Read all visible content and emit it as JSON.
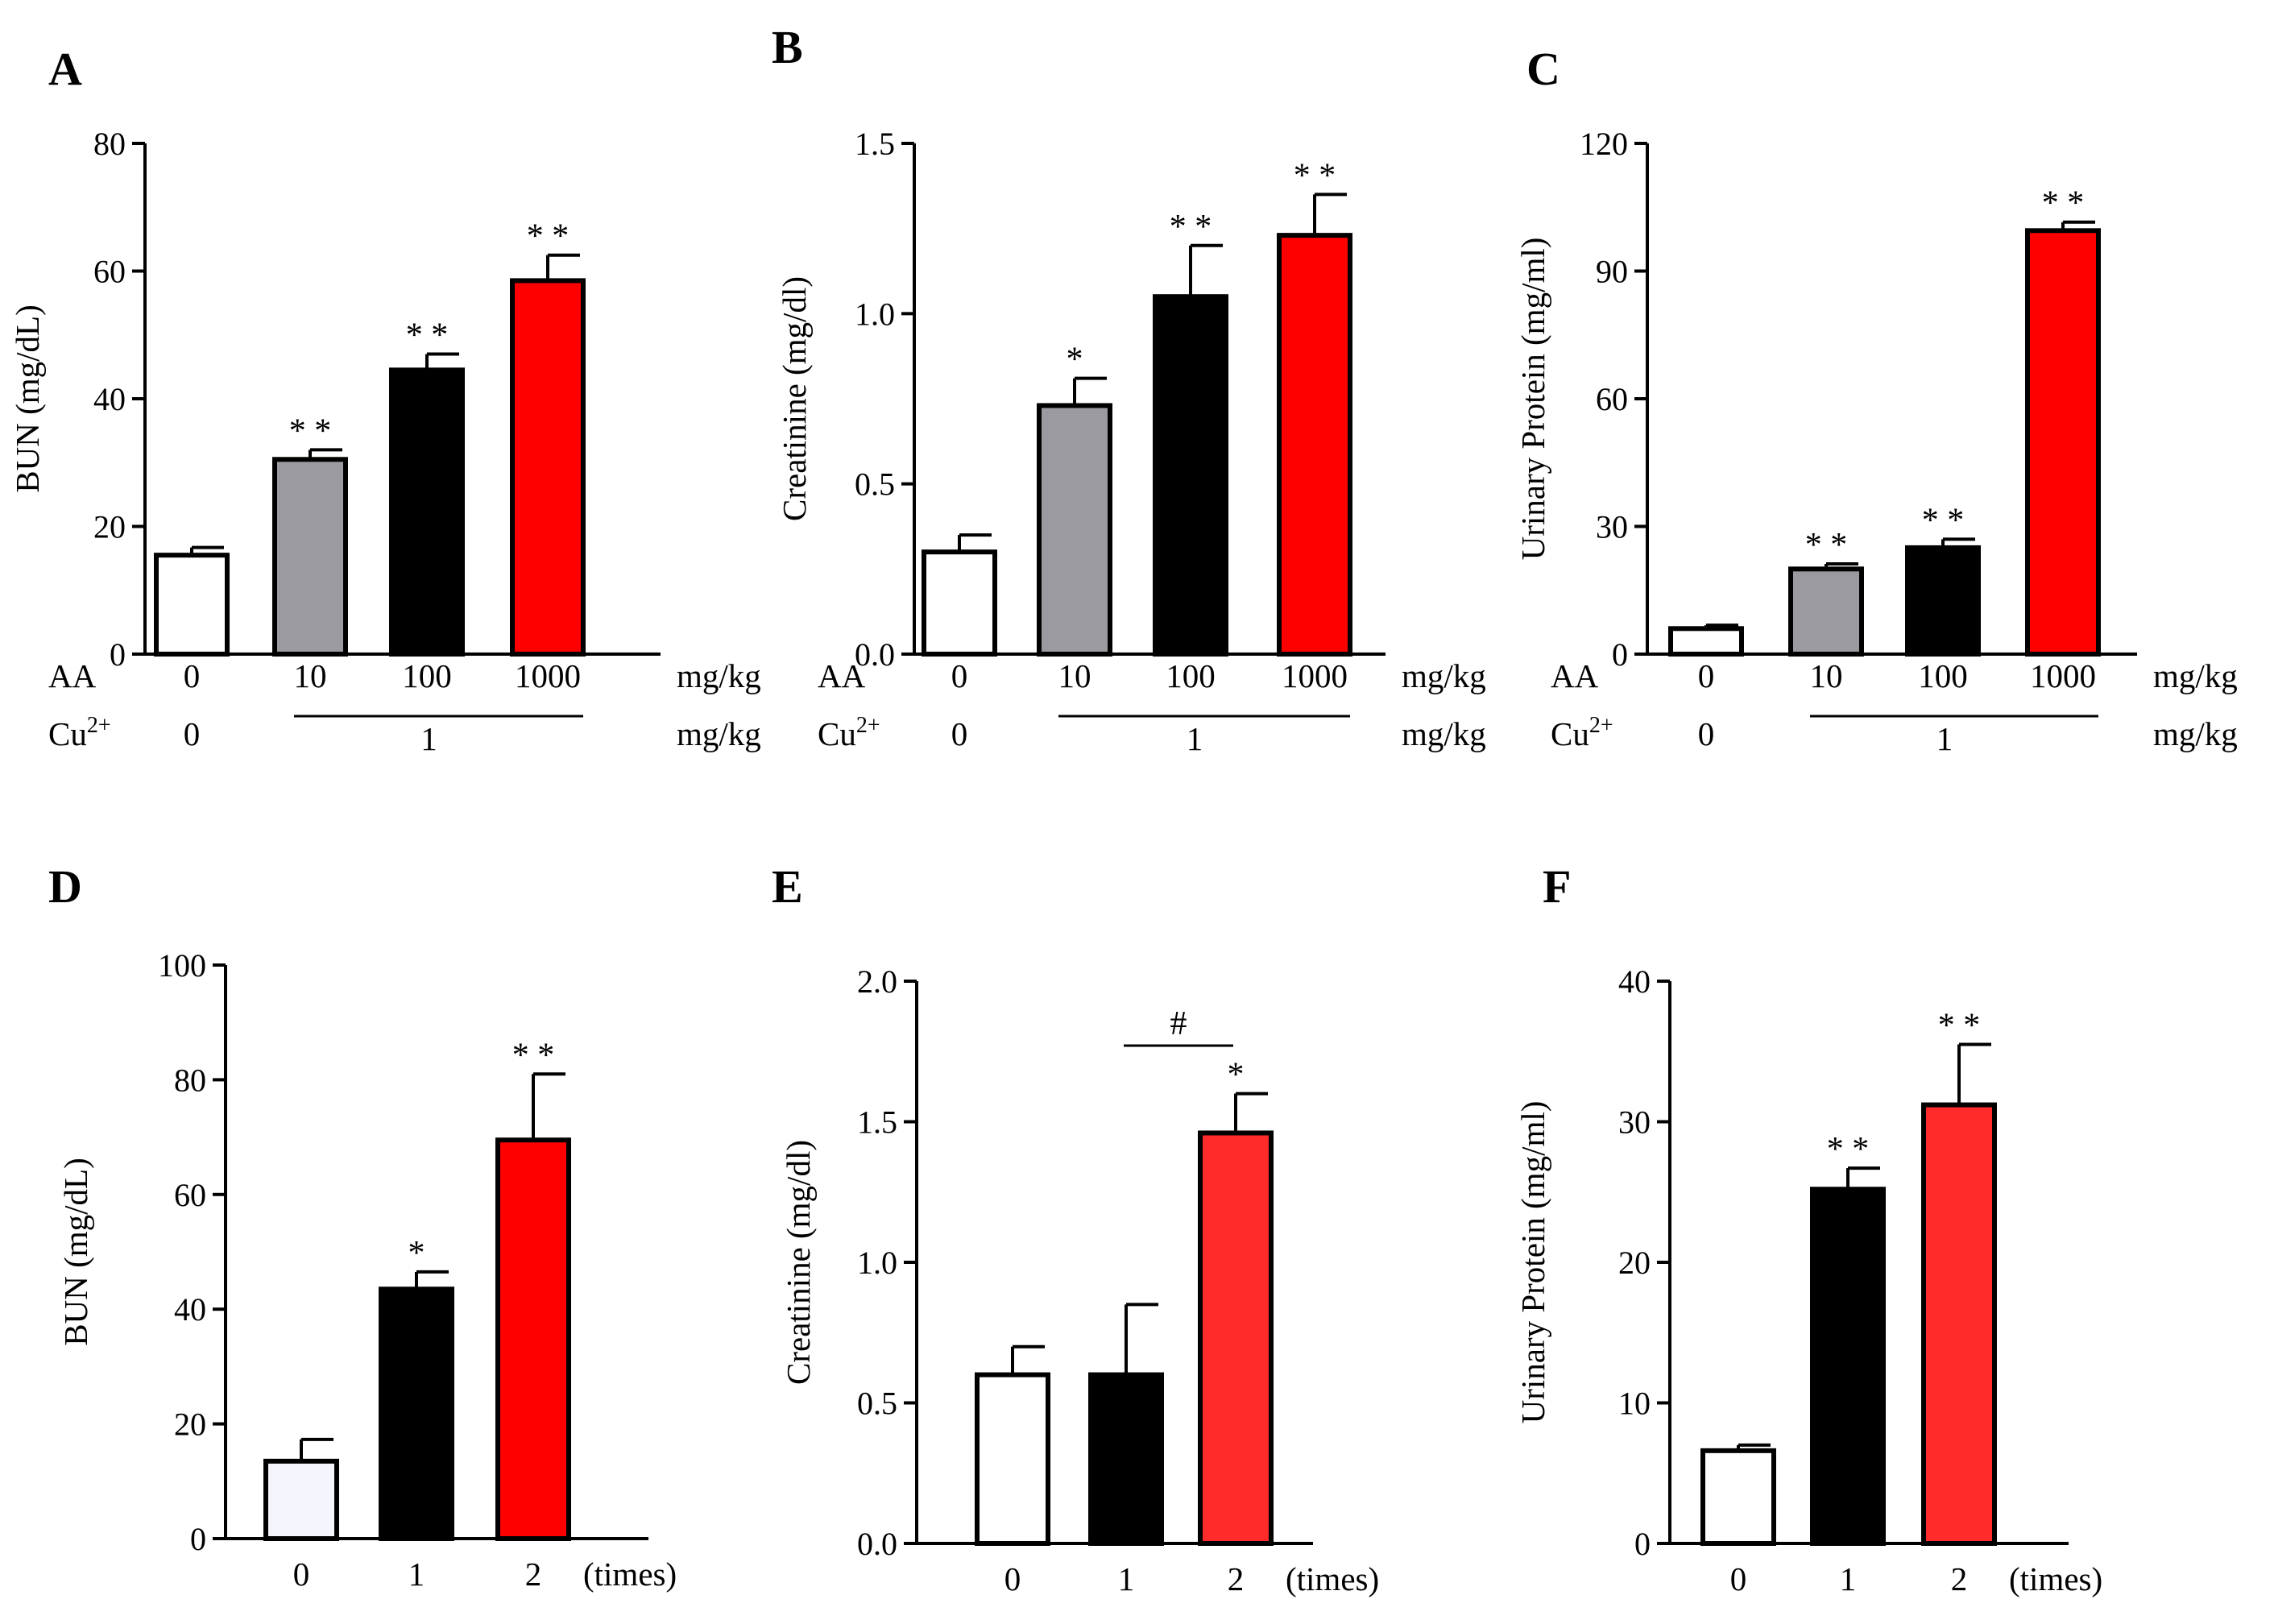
{
  "figure": {
    "dose_unit": "mg/kg",
    "times_unit": "(times)",
    "row_labels": {
      "aa": "AA",
      "cu_base": "Cu",
      "cu_sup": "2+"
    }
  },
  "chart_data": [
    {
      "panel": "A",
      "type": "bar",
      "ylabel": "BUN  (mg/dL)",
      "ylim": [
        0,
        80
      ],
      "yticks": [
        0,
        20,
        40,
        60,
        80
      ],
      "categories": [
        "0",
        "10",
        "100",
        "1000"
      ],
      "cu_values": [
        "0",
        "1"
      ],
      "values": [
        15.5,
        30.5,
        44.5,
        58.5
      ],
      "errors": [
        1.2,
        1.5,
        2.5,
        4.0
      ],
      "significance": [
        "",
        "* *",
        "* *",
        "* *"
      ],
      "colors": [
        "#ffffff",
        "#9a9aa0",
        "#000000",
        "#ff0000"
      ]
    },
    {
      "panel": "B",
      "type": "bar",
      "ylabel": "Creatinine (mg/dl)",
      "ylim": [
        0,
        1.5
      ],
      "yticks": [
        "0.0",
        "0.5",
        "1.0",
        "1.5"
      ],
      "categories": [
        "0",
        "10",
        "100",
        "1000"
      ],
      "cu_values": [
        "0",
        "1"
      ],
      "values": [
        0.3,
        0.73,
        1.05,
        1.23
      ],
      "errors": [
        0.05,
        0.08,
        0.15,
        0.12
      ],
      "significance": [
        "",
        "*",
        "* *",
        "* *"
      ],
      "colors": [
        "#ffffff",
        "#9a9aa0",
        "#000000",
        "#ff0000"
      ]
    },
    {
      "panel": "C",
      "type": "bar",
      "ylabel": "Urinary  Protein (mg/ml)",
      "ylim": [
        0,
        120
      ],
      "yticks": [
        0,
        30,
        60,
        90,
        120
      ],
      "categories": [
        "0",
        "10",
        "100",
        "1000"
      ],
      "cu_values": [
        "0",
        "1"
      ],
      "values": [
        6,
        20,
        25,
        99.5
      ],
      "errors": [
        0.8,
        1.2,
        2.0,
        2.0
      ],
      "significance": [
        "",
        "* *",
        "* *",
        "* *"
      ],
      "colors": [
        "#ffffff",
        "#9a9aa0",
        "#000000",
        "#ff0000"
      ]
    },
    {
      "panel": "D",
      "type": "bar",
      "ylabel": "BUN  (mg/dL)",
      "ylim": [
        0,
        100
      ],
      "yticks": [
        0,
        20,
        40,
        60,
        80,
        100
      ],
      "categories": [
        "0",
        "1",
        "2"
      ],
      "values": [
        13.5,
        43.5,
        69.5
      ],
      "errors": [
        3.8,
        3.0,
        11.5
      ],
      "significance": [
        "",
        "*",
        "* *"
      ],
      "colors": [
        "#f4f4fc",
        "#000000",
        "#ff0000"
      ]
    },
    {
      "panel": "E",
      "type": "bar",
      "ylabel": "Creatinine (mg/dl)",
      "ylim": [
        0,
        2.0
      ],
      "yticks": [
        "0.0",
        "0.5",
        "1.0",
        "1.5",
        "2.0"
      ],
      "categories": [
        "0",
        "1",
        "2"
      ],
      "values": [
        0.6,
        0.6,
        1.46
      ],
      "errors": [
        0.1,
        0.25,
        0.14
      ],
      "significance": [
        "",
        "",
        "*"
      ],
      "bracket": {
        "from": 1,
        "to": 2,
        "label": "#"
      },
      "colors": [
        "#ffffff",
        "#000000",
        "#ff2a2a"
      ]
    },
    {
      "panel": "F",
      "type": "bar",
      "ylabel": "Urinary  Protein (mg/ml)",
      "ylim": [
        0,
        40
      ],
      "yticks": [
        0,
        10,
        20,
        30,
        40
      ],
      "categories": [
        "0",
        "1",
        "2"
      ],
      "values": [
        6.6,
        25.2,
        31.2
      ],
      "errors": [
        0.4,
        1.5,
        4.3
      ],
      "significance": [
        "",
        "* *",
        "* *"
      ],
      "colors": [
        "#ffffff",
        "#000000",
        "#ff2a2a"
      ]
    }
  ]
}
